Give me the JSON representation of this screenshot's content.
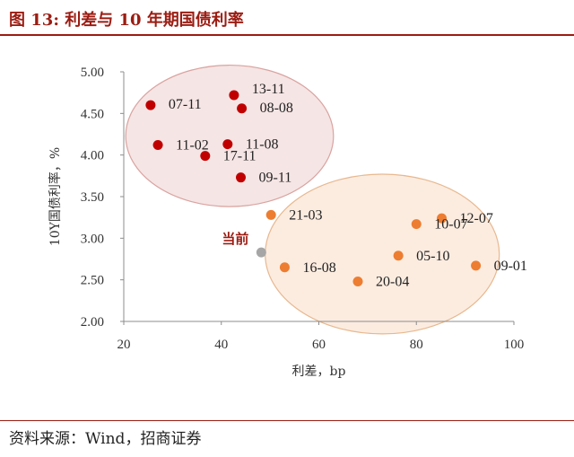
{
  "header": {
    "title": "图 13:  利差与 10 年期国债利率"
  },
  "footer": {
    "source": "资料来源：Wind，招商证券"
  },
  "chart_data": {
    "type": "scatter",
    "xlabel": "利差，bp",
    "ylabel": "10Y国债利率，%",
    "xlim": [
      20,
      100
    ],
    "ylim": [
      2.0,
      5.0
    ],
    "xticks": [
      "20",
      "40",
      "60",
      "80",
      "100"
    ],
    "yticks": [
      "2.00",
      "2.50",
      "3.00",
      "3.50",
      "4.00",
      "4.50",
      "5.00"
    ],
    "colors": {
      "red": "#c00000",
      "orange": "#ed7d31",
      "current": "#a6a6a6",
      "accent": "#9b1c12"
    },
    "points": [
      {
        "label": "07-11",
        "x": 25.5,
        "y": 4.6,
        "group": "red"
      },
      {
        "label": "13-11",
        "x": 42.6,
        "y": 4.72,
        "group": "red"
      },
      {
        "label": "08-08",
        "x": 44.2,
        "y": 4.56,
        "group": "red"
      },
      {
        "label": "11-02",
        "x": 27.0,
        "y": 4.12,
        "group": "red"
      },
      {
        "label": "11-08",
        "x": 41.3,
        "y": 4.13,
        "group": "red"
      },
      {
        "label": "17-11",
        "x": 36.7,
        "y": 3.99,
        "group": "red"
      },
      {
        "label": "09-11",
        "x": 44.0,
        "y": 3.73,
        "group": "red"
      },
      {
        "label": "21-03",
        "x": 50.2,
        "y": 3.28,
        "group": "orange"
      },
      {
        "label": "12-07",
        "x": 85.2,
        "y": 3.24,
        "group": "orange"
      },
      {
        "label": "10-07",
        "x": 80.0,
        "y": 3.17,
        "group": "orange"
      },
      {
        "label": "05-10",
        "x": 76.3,
        "y": 2.79,
        "group": "orange"
      },
      {
        "label": "09-01",
        "x": 92.2,
        "y": 2.67,
        "group": "orange"
      },
      {
        "label": "16-08",
        "x": 53.0,
        "y": 2.65,
        "group": "orange"
      },
      {
        "label": "20-04",
        "x": 68.0,
        "y": 2.48,
        "group": "orange"
      },
      {
        "label": "当前",
        "x": 48.2,
        "y": 2.83,
        "group": "current"
      }
    ]
  }
}
